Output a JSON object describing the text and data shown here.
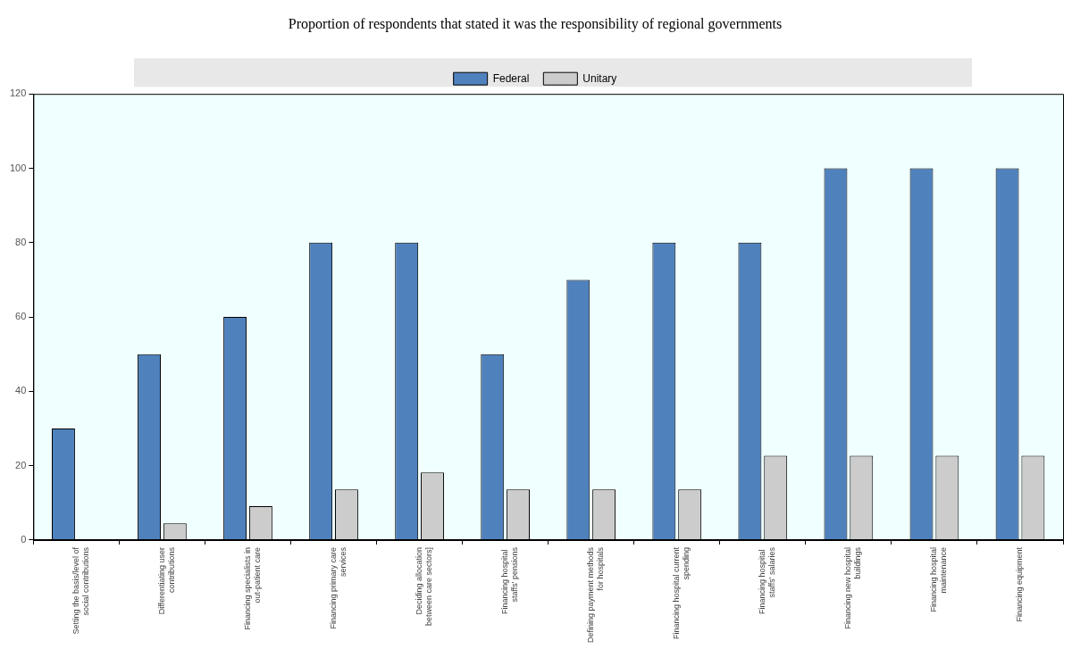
{
  "chart_data": {
    "type": "bar",
    "title": "Proportion of respondents that stated it was the responsibility of regional governments",
    "categories": [
      "Setting the basis/level of social contributions",
      "Differentiating user contributions",
      "Financing specialists in out-patient care",
      "Financing primary care services",
      "Deciding allocation between care sectors]",
      "Financing hospital  staffs' pensions",
      "Defining payment methods for hospitals",
      "Financing hospital current spending",
      "Financing hospital  staffs' salaries",
      "Financing new hospital buildings",
      "Financing hospital maintenance",
      "Financing equipment"
    ],
    "series": [
      {
        "name": "Federal",
        "color": "#4f81bd",
        "values": [
          30,
          50,
          60,
          80,
          80,
          50,
          70,
          80,
          80,
          100,
          100,
          100
        ]
      },
      {
        "name": "Unitary",
        "color": "#cccccc",
        "values": [
          0,
          4.5,
          9.1,
          13.6,
          18.2,
          13.6,
          13.6,
          13.6,
          22.7,
          22.7,
          22.7,
          22.7
        ]
      }
    ],
    "ylim": [
      0,
      120
    ],
    "yticks": [
      0,
      20,
      40,
      60,
      80,
      100,
      120
    ],
    "grid": false,
    "legend": "top"
  }
}
